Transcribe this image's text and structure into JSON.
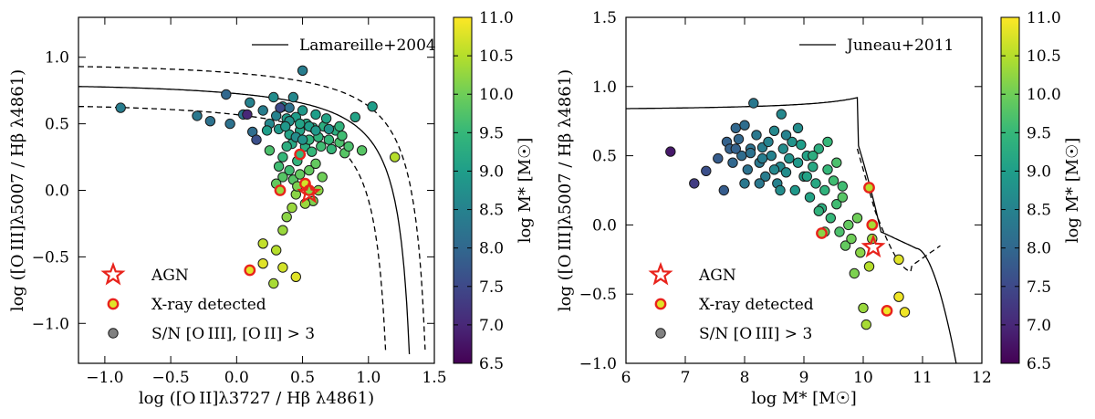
{
  "colors": {
    "viridis": [
      "#440154",
      "#482878",
      "#3e4989",
      "#31688e",
      "#26828e",
      "#1f9e89",
      "#35b779",
      "#6ece58",
      "#b5de2b",
      "#fde725"
    ],
    "agn": "#e8231c",
    "xray_edge": "#e8231c",
    "legend_point": "#808080"
  },
  "colorbar": {
    "label": "log M* [M☉]",
    "ticks": [
      "11.0",
      "10.5",
      "10.0",
      "9.5",
      "9.0",
      "8.5",
      "8.0",
      "7.5",
      "7.0",
      "6.5"
    ],
    "range": [
      6.5,
      11.0
    ]
  },
  "chart_data": [
    {
      "type": "scatter",
      "ylabel": "log ([O III]λ5007 / Hβ λ4861)",
      "xlabel": "log ([O II]λ3727 / Hβ λ4861)",
      "xlim": [
        -1.2,
        1.5
      ],
      "ylim": [
        -1.3,
        1.3
      ],
      "xticks": [
        -1.0,
        -0.5,
        0.0,
        0.5,
        1.0,
        1.5
      ],
      "xtick_labels": [
        "−1.0",
        "−0.5",
        "0.0",
        "0.5",
        "1.0",
        "1.5"
      ],
      "yticks": [
        -1.0,
        -0.5,
        0.0,
        0.5,
        1.0
      ],
      "ytick_labels": [
        "−1.0",
        "−0.5",
        "0.0",
        "0.5",
        "1.0"
      ],
      "line_legend": "Lamareille+2004",
      "legend": {
        "agn": "AGN",
        "xray": "X-ray detected",
        "sn": "S/N [O III], [O II] > 3"
      },
      "points": [
        [
          -0.88,
          0.62,
          8.4
        ],
        [
          -0.3,
          0.56,
          8.3
        ],
        [
          -0.2,
          0.52,
          8.2
        ],
        [
          -0.08,
          0.72,
          8.0
        ],
        [
          -0.05,
          0.5,
          8.2
        ],
        [
          0.05,
          0.57,
          8.3
        ],
        [
          0.1,
          0.66,
          8.5
        ],
        [
          0.08,
          0.57,
          7.0
        ],
        [
          0.12,
          0.44,
          8.1
        ],
        [
          0.15,
          0.38,
          7.6
        ],
        [
          0.2,
          0.6,
          8.4
        ],
        [
          0.25,
          0.5,
          8.6
        ],
        [
          0.28,
          0.7,
          8.7
        ],
        [
          0.3,
          0.56,
          8.5
        ],
        [
          0.32,
          0.46,
          8.9
        ],
        [
          0.35,
          0.63,
          8.8
        ],
        [
          0.38,
          0.54,
          9.0
        ],
        [
          0.4,
          0.42,
          9.1
        ],
        [
          0.42,
          0.35,
          9.2
        ],
        [
          0.43,
          0.7,
          8.6
        ],
        [
          0.45,
          0.55,
          9.0
        ],
        [
          0.46,
          0.22,
          9.4
        ],
        [
          0.48,
          0.45,
          9.1
        ],
        [
          0.5,
          0.6,
          8.9
        ],
        [
          0.5,
          0.9,
          8.4
        ],
        [
          0.52,
          0.33,
          9.3
        ],
        [
          0.53,
          0.5,
          9.2
        ],
        [
          0.55,
          0.38,
          9.4
        ],
        [
          0.57,
          0.29,
          9.5
        ],
        [
          0.58,
          0.47,
          9.2
        ],
        [
          0.6,
          0.57,
          9.0
        ],
        [
          0.62,
          0.4,
          9.4
        ],
        [
          0.64,
          0.33,
          9.6
        ],
        [
          0.66,
          0.48,
          9.3
        ],
        [
          0.68,
          0.54,
          9.1
        ],
        [
          0.7,
          0.38,
          9.5
        ],
        [
          0.72,
          0.31,
          9.5
        ],
        [
          0.75,
          0.45,
          9.3
        ],
        [
          0.78,
          0.36,
          9.7
        ],
        [
          0.8,
          0.41,
          9.6
        ],
        [
          0.82,
          0.28,
          9.8
        ],
        [
          0.85,
          0.33,
          9.7
        ],
        [
          0.4,
          0.15,
          9.6
        ],
        [
          0.43,
          0.08,
          9.8
        ],
        [
          0.48,
          0.12,
          9.9
        ],
        [
          0.35,
          0.25,
          9.5
        ],
        [
          0.38,
          0.33,
          9.3
        ],
        [
          0.55,
          0.15,
          9.9
        ],
        [
          0.6,
          0.2,
          9.9
        ],
        [
          0.65,
          0.1,
          10.0
        ],
        [
          0.58,
          -0.08,
          10.1
        ],
        [
          0.45,
          -0.03,
          10.2
        ],
        [
          0.52,
          -0.1,
          10.3
        ],
        [
          0.42,
          -0.13,
          10.3
        ],
        [
          0.38,
          -0.2,
          10.2
        ],
        [
          0.35,
          0.1,
          9.8
        ],
        [
          0.32,
          0.18,
          9.6
        ],
        [
          0.3,
          0.05,
          9.9
        ],
        [
          0.46,
          0.03,
          10.1
        ],
        [
          0.62,
          0.0,
          10.2
        ],
        [
          0.35,
          -0.3,
          10.3
        ],
        [
          0.3,
          -0.45,
          10.5
        ],
        [
          0.2,
          -0.4,
          10.6
        ],
        [
          0.2,
          -0.55,
          10.8
        ],
        [
          0.35,
          -0.58,
          10.7
        ],
        [
          0.45,
          -0.65,
          10.8
        ],
        [
          0.28,
          -0.7,
          10.4
        ],
        [
          0.4,
          0.62,
          8.2
        ],
        [
          0.45,
          0.4,
          8.7
        ],
        [
          0.5,
          0.38,
          8.8
        ],
        [
          0.55,
          0.48,
          9.0
        ],
        [
          0.6,
          0.45,
          8.9
        ],
        [
          0.7,
          0.46,
          8.8
        ],
        [
          1.03,
          0.63,
          9.0
        ],
        [
          0.95,
          0.3,
          9.8
        ],
        [
          1.2,
          0.25,
          10.5
        ],
        [
          0.9,
          0.55,
          9.1
        ],
        [
          0.78,
          0.48,
          9.4
        ],
        [
          0.33,
          0.62,
          7.5
        ],
        [
          0.48,
          0.5,
          9.1
        ],
        [
          0.4,
          0.52,
          8.8
        ],
        [
          0.37,
          0.48,
          8.9
        ],
        [
          0.25,
          0.3,
          9.7
        ],
        [
          0.23,
          0.45,
          9.0
        ]
      ],
      "xray_points": [
        [
          0.48,
          0.27,
          9.5
        ],
        [
          0.33,
          0.0,
          10.3
        ],
        [
          0.52,
          0.05,
          10.7
        ],
        [
          0.1,
          -0.6,
          10.8
        ],
        [
          0.55,
          0.0,
          10.2
        ]
      ],
      "agn_points": [
        [
          0.55,
          -0.02
        ]
      ]
    },
    {
      "type": "scatter",
      "ylabel": "log ([O III]λ5007 / Hβ λ4861)",
      "xlabel": "log M* [M☉]",
      "xlim": [
        6,
        12
      ],
      "ylim": [
        -1.0,
        1.5
      ],
      "xticks": [
        6,
        7,
        8,
        9,
        10,
        11,
        12
      ],
      "xtick_labels": [
        "6",
        "7",
        "8",
        "9",
        "10",
        "11",
        "12"
      ],
      "yticks": [
        -1.0,
        -0.5,
        0.0,
        0.5,
        1.0,
        1.5
      ],
      "ytick_labels": [
        "−1.0",
        "−0.5",
        "0.0",
        "0.5",
        "1.0",
        "1.5"
      ],
      "line_legend": "Juneau+2011",
      "legend": {
        "agn": "AGN",
        "xray": "X-ray detected",
        "sn": "S/N [O III] > 3"
      },
      "points": [
        [
          6.75,
          0.53,
          6.8
        ],
        [
          7.15,
          0.3,
          7.3
        ],
        [
          7.35,
          0.39,
          7.6
        ],
        [
          7.55,
          0.48,
          7.8
        ],
        [
          7.65,
          0.25,
          7.8
        ],
        [
          7.7,
          0.6,
          7.9
        ],
        [
          7.75,
          0.55,
          7.9
        ],
        [
          7.8,
          0.45,
          8.0
        ],
        [
          7.85,
          0.7,
          8.0
        ],
        [
          7.9,
          0.62,
          8.0
        ],
        [
          7.95,
          0.5,
          8.1
        ],
        [
          8.0,
          0.72,
          8.1
        ],
        [
          8.05,
          0.4,
          8.2
        ],
        [
          8.1,
          0.55,
          8.2
        ],
        [
          8.15,
          0.88,
          8.3
        ],
        [
          8.2,
          0.65,
          8.3
        ],
        [
          8.25,
          0.45,
          8.3
        ],
        [
          8.3,
          0.56,
          8.4
        ],
        [
          8.35,
          0.35,
          8.4
        ],
        [
          8.4,
          0.6,
          8.5
        ],
        [
          8.45,
          0.5,
          8.5
        ],
        [
          8.5,
          0.68,
          8.6
        ],
        [
          8.55,
          0.3,
          8.5
        ],
        [
          8.6,
          0.42,
          8.6
        ],
        [
          8.62,
          0.8,
          8.6
        ],
        [
          8.65,
          0.55,
          8.7
        ],
        [
          8.7,
          0.38,
          8.7
        ],
        [
          8.75,
          0.48,
          8.8
        ],
        [
          8.8,
          0.6,
          8.8
        ],
        [
          8.85,
          0.25,
          8.9
        ],
        [
          8.9,
          0.45,
          8.9
        ],
        [
          8.95,
          0.58,
          9.0
        ],
        [
          9.0,
          0.35,
          9.0
        ],
        [
          9.05,
          0.5,
          9.1
        ],
        [
          9.1,
          0.2,
          9.1
        ],
        [
          9.15,
          0.42,
          9.2
        ],
        [
          9.2,
          0.3,
          9.2
        ],
        [
          9.25,
          0.55,
          9.3
        ],
        [
          9.3,
          0.12,
          9.3
        ],
        [
          9.35,
          0.25,
          9.4
        ],
        [
          9.4,
          0.4,
          9.5
        ],
        [
          9.45,
          0.05,
          9.5
        ],
        [
          9.5,
          0.32,
          9.6
        ],
        [
          9.55,
          0.15,
          9.6
        ],
        [
          9.6,
          -0.05,
          9.7
        ],
        [
          9.65,
          0.2,
          9.8
        ],
        [
          9.7,
          -0.15,
          9.9
        ],
        [
          9.75,
          0.0,
          9.9
        ],
        [
          9.8,
          -0.1,
          10.0
        ],
        [
          9.85,
          -0.35,
          10.1
        ],
        [
          9.9,
          0.05,
          10.0
        ],
        [
          9.95,
          -0.2,
          10.2
        ],
        [
          10.0,
          -0.6,
          10.3
        ],
        [
          10.05,
          -0.72,
          10.4
        ],
        [
          10.1,
          -0.3,
          10.5
        ],
        [
          10.15,
          -0.1,
          10.3
        ],
        [
          10.6,
          -0.25,
          10.8
        ],
        [
          10.6,
          -0.52,
          10.9
        ],
        [
          10.7,
          -0.63,
          10.9
        ],
        [
          8.1,
          0.52,
          8.2
        ],
        [
          8.3,
          0.48,
          8.4
        ],
        [
          8.5,
          0.4,
          8.6
        ],
        [
          8.7,
          0.65,
          8.5
        ],
        [
          8.9,
          0.7,
          8.7
        ],
        [
          9.05,
          0.35,
          9.1
        ],
        [
          9.25,
          0.1,
          9.4
        ],
        [
          9.4,
          0.6,
          9.5
        ],
        [
          9.55,
          0.45,
          9.7
        ],
        [
          8.0,
          0.3,
          8.3
        ],
        [
          7.85,
          0.55,
          7.9
        ],
        [
          8.25,
          0.3,
          8.3
        ],
        [
          8.6,
          0.25,
          8.7
        ],
        [
          9.15,
          0.5,
          9.3
        ],
        [
          9.35,
          -0.05,
          9.9
        ],
        [
          9.65,
          0.28,
          9.6
        ]
      ],
      "xray_points": [
        [
          10.1,
          0.27,
          10.5
        ],
        [
          10.15,
          0.0,
          10.4
        ],
        [
          9.3,
          -0.06,
          10.2
        ],
        [
          10.4,
          -0.62,
          10.9
        ]
      ],
      "agn_points": [
        [
          10.17,
          -0.16
        ]
      ]
    }
  ]
}
